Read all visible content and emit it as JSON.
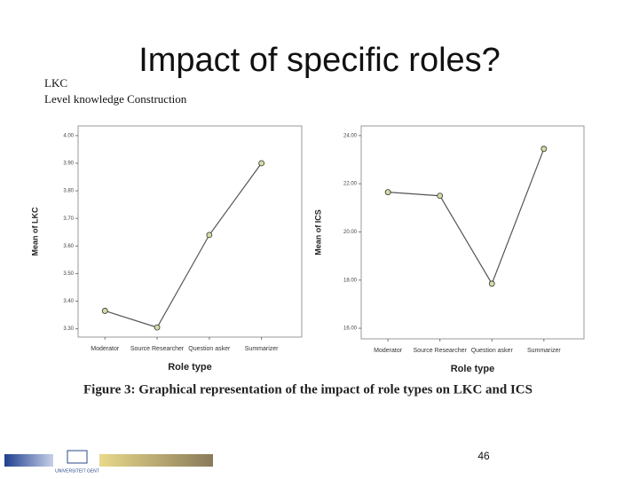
{
  "slide": {
    "title": "Impact of specific roles?",
    "subtitle_lines": [
      "LKC",
      "Level knowledge Construction"
    ],
    "caption": "Figure 3: Graphical representation of the impact of role types on LKC and ICS",
    "logo_text": "UNIVERSITEIT GENT",
    "page_number": "46"
  },
  "chart_data": [
    {
      "type": "line",
      "categories": [
        "Moderator",
        "Source Researcher",
        "Question asker",
        "Summarizer"
      ],
      "values": [
        3.365,
        3.305,
        3.64,
        3.9
      ],
      "color": "#555555",
      "marker_color": "#d6dba4",
      "x_label": "Role type",
      "y_label": "Mean of LKC",
      "ylim": [
        3.27,
        4.035
      ],
      "yticks": [
        {
          "value": 3.3,
          "label": "3.30"
        },
        {
          "value": 3.4,
          "label": "3.40"
        },
        {
          "value": 3.5,
          "label": "3.50"
        },
        {
          "value": 3.6,
          "label": "3.60"
        },
        {
          "value": 3.7,
          "label": "3.70"
        },
        {
          "value": 3.8,
          "label": "3.80"
        },
        {
          "value": 3.9,
          "label": "3.90"
        },
        {
          "value": 4.0,
          "label": "4.00"
        }
      ]
    },
    {
      "type": "line",
      "categories": [
        "Moderator",
        "Source Researcher",
        "Question asker",
        "Summarizer"
      ],
      "values": [
        21.65,
        21.5,
        17.85,
        23.45
      ],
      "color": "#555555",
      "marker_color": "#d6dba4",
      "x_label": "Role type",
      "y_label": "Mean of ICS",
      "ylim": [
        15.56,
        24.4
      ],
      "yticks": [
        {
          "value": 16,
          "label": "16.00"
        },
        {
          "value": 18,
          "label": "18.00"
        },
        {
          "value": 20,
          "label": "20.00"
        },
        {
          "value": 22,
          "label": "22.00"
        },
        {
          "value": 24,
          "label": "24.00"
        }
      ]
    }
  ]
}
